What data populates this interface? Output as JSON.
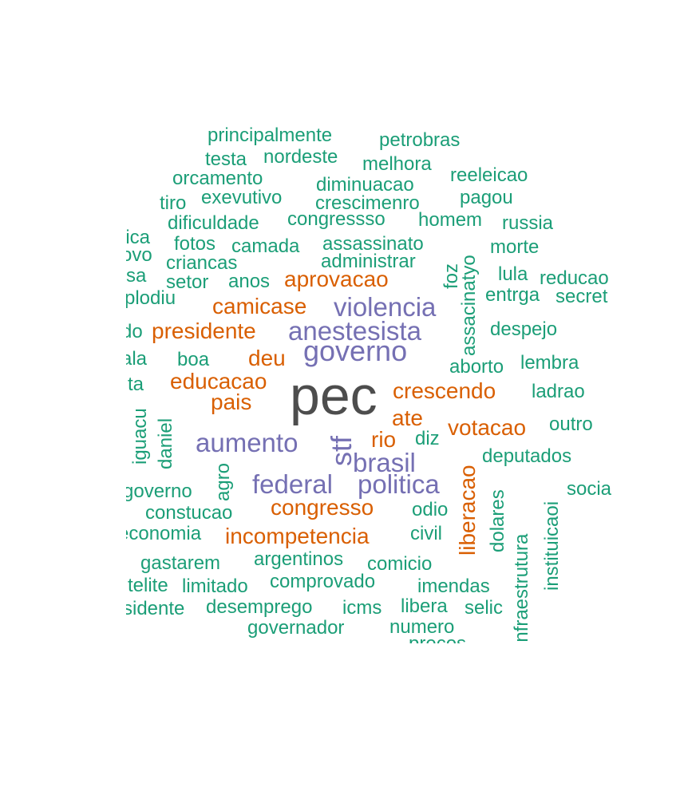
{
  "palette": {
    "green": "#1b9e77",
    "orange": "#d95f02",
    "purple": "#7570b3",
    "gray": "#4d4d4d"
  },
  "words": [
    {
      "text": "pec",
      "color": "gray"
    },
    {
      "text": "governo",
      "color": "purple"
    },
    {
      "text": "anestesista",
      "color": "purple"
    },
    {
      "text": "violencia",
      "color": "purple"
    },
    {
      "text": "aumento",
      "color": "purple"
    },
    {
      "text": "stf",
      "color": "purple"
    },
    {
      "text": "brasil",
      "color": "purple"
    },
    {
      "text": "federal",
      "color": "purple"
    },
    {
      "text": "politica",
      "color": "purple"
    },
    {
      "text": "aprovacao",
      "color": "orange"
    },
    {
      "text": "camicase",
      "color": "orange"
    },
    {
      "text": "presidente",
      "color": "orange"
    },
    {
      "text": "deu",
      "color": "orange"
    },
    {
      "text": "educacao",
      "color": "orange"
    },
    {
      "text": "pais",
      "color": "orange"
    },
    {
      "text": "crescendo",
      "color": "orange"
    },
    {
      "text": "ate",
      "color": "orange"
    },
    {
      "text": "rio",
      "color": "orange"
    },
    {
      "text": "votacao",
      "color": "orange"
    },
    {
      "text": "liberacao",
      "color": "orange"
    },
    {
      "text": "congresso",
      "color": "orange"
    },
    {
      "text": "incompetencia",
      "color": "orange"
    },
    {
      "text": "principalmente",
      "color": "green"
    },
    {
      "text": "petrobras",
      "color": "green"
    },
    {
      "text": "testa",
      "color": "green"
    },
    {
      "text": "nordeste",
      "color": "green"
    },
    {
      "text": "melhora",
      "color": "green"
    },
    {
      "text": "orcamento",
      "color": "green"
    },
    {
      "text": "diminuacao",
      "color": "green"
    },
    {
      "text": "reeleicao",
      "color": "green"
    },
    {
      "text": "tiro",
      "color": "green"
    },
    {
      "text": "exevutivo",
      "color": "green"
    },
    {
      "text": "crescimenro",
      "color": "green"
    },
    {
      "text": "pagou",
      "color": "green"
    },
    {
      "text": "dificuldade",
      "color": "green"
    },
    {
      "text": "congressso",
      "color": "green"
    },
    {
      "text": "homem",
      "color": "green"
    },
    {
      "text": "russia",
      "color": "green"
    },
    {
      "text": "nica",
      "color": "green"
    },
    {
      "text": "fotos",
      "color": "green"
    },
    {
      "text": "camada",
      "color": "green"
    },
    {
      "text": "assassinato",
      "color": "green"
    },
    {
      "text": "morte",
      "color": "green"
    },
    {
      "text": "ovo",
      "color": "green"
    },
    {
      "text": "criancas",
      "color": "green"
    },
    {
      "text": "administrar",
      "color": "green"
    },
    {
      "text": "assacinatyo",
      "color": "green"
    },
    {
      "text": "foz",
      "color": "green"
    },
    {
      "text": "sa",
      "color": "green"
    },
    {
      "text": "setor",
      "color": "green"
    },
    {
      "text": "anos",
      "color": "green"
    },
    {
      "text": "lula",
      "color": "green"
    },
    {
      "text": "reducao",
      "color": "green"
    },
    {
      "text": "plodiu",
      "color": "green"
    },
    {
      "text": "entrga",
      "color": "green"
    },
    {
      "text": "secret",
      "color": "green"
    },
    {
      "text": "do",
      "color": "green"
    },
    {
      "text": "despejo",
      "color": "green"
    },
    {
      "text": "ala",
      "color": "green"
    },
    {
      "text": "boa",
      "color": "green"
    },
    {
      "text": "aborto",
      "color": "green"
    },
    {
      "text": "lembra",
      "color": "green"
    },
    {
      "text": "ta",
      "color": "green"
    },
    {
      "text": "ladrao",
      "color": "green"
    },
    {
      "text": "iguacu",
      "color": "green"
    },
    {
      "text": "daniel",
      "color": "green"
    },
    {
      "text": "outro",
      "color": "green"
    },
    {
      "text": "diz",
      "color": "green"
    },
    {
      "text": "deputados",
      "color": "green"
    },
    {
      "text": "agro",
      "color": "green"
    },
    {
      "text": "governo",
      "color": "green"
    },
    {
      "text": "socia",
      "color": "green"
    },
    {
      "text": "dolares",
      "color": "green"
    },
    {
      "text": "instituicaoi",
      "color": "green"
    },
    {
      "text": "constucao",
      "color": "green"
    },
    {
      "text": "odio",
      "color": "green"
    },
    {
      "text": "economia",
      "color": "green"
    },
    {
      "text": "civil",
      "color": "green"
    },
    {
      "text": "infraestrutura",
      "color": "green"
    },
    {
      "text": "gastarem",
      "color": "green"
    },
    {
      "text": "argentinos",
      "color": "green"
    },
    {
      "text": "comicio",
      "color": "green"
    },
    {
      "text": "telite",
      "color": "green"
    },
    {
      "text": "limitado",
      "color": "green"
    },
    {
      "text": "comprovado",
      "color": "green"
    },
    {
      "text": "imendas",
      "color": "green"
    },
    {
      "text": "sidente",
      "color": "green"
    },
    {
      "text": "desemprego",
      "color": "green"
    },
    {
      "text": "icms",
      "color": "green"
    },
    {
      "text": "libera",
      "color": "green"
    },
    {
      "text": "selic",
      "color": "green"
    },
    {
      "text": "governador",
      "color": "green"
    },
    {
      "text": "numero",
      "color": "green"
    },
    {
      "text": "precos",
      "color": "green"
    }
  ]
}
